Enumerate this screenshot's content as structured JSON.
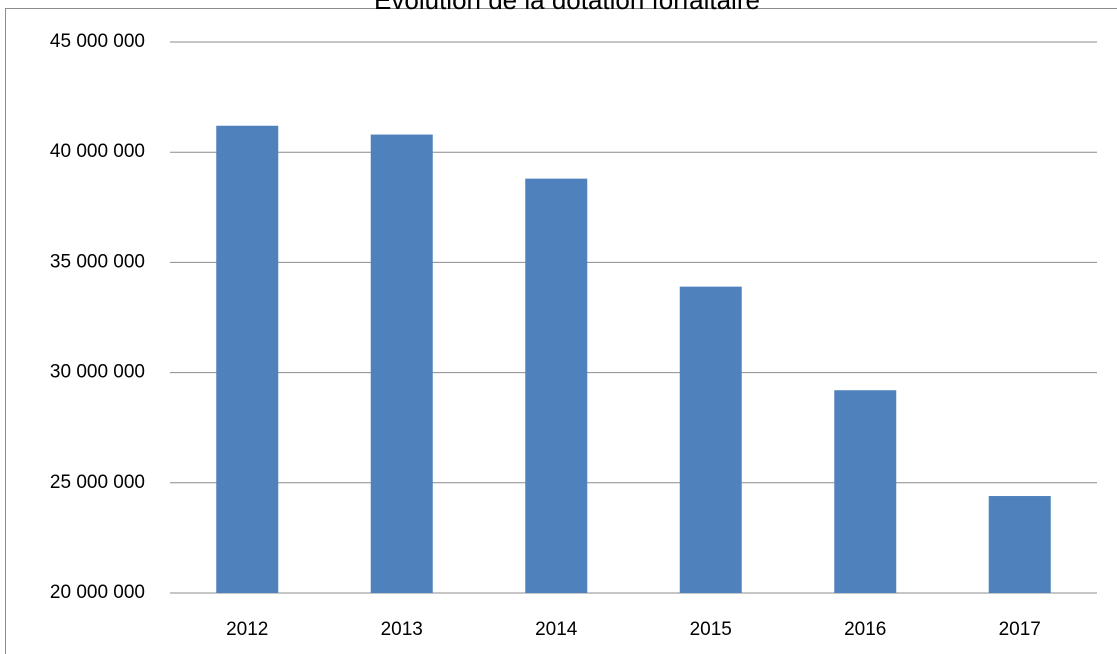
{
  "chart_data": {
    "type": "bar",
    "title": "Évolution de la dotation forfaitaire",
    "categories": [
      "2012",
      "2013",
      "2014",
      "2015",
      "2016",
      "2017"
    ],
    "values": [
      41200000,
      40800000,
      38800000,
      33900000,
      29200000,
      24400000
    ],
    "color": "#4f81bd",
    "ylim": [
      20000000,
      45000000
    ],
    "yticks": [
      {
        "value": 20000000,
        "label": "20 000 000"
      },
      {
        "value": 25000000,
        "label": "25 000 000"
      },
      {
        "value": 30000000,
        "label": "30 000 000"
      },
      {
        "value": 35000000,
        "label": "35 000 000"
      },
      {
        "value": 40000000,
        "label": "40 000 000"
      },
      {
        "value": 45000000,
        "label": "45 000 000"
      }
    ],
    "grid": true
  }
}
